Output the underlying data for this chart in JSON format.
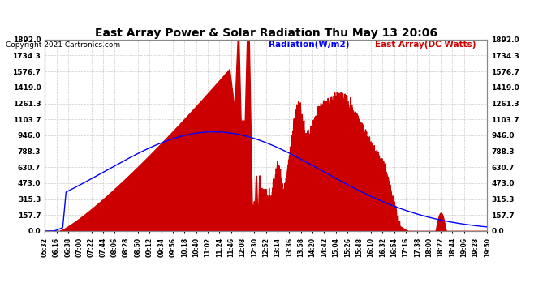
{
  "title": "East Array Power & Solar Radiation Thu May 13 20:06",
  "copyright": "Copyright 2021 Cartronics.com",
  "legend_radiation": "Radiation(W/m2)",
  "legend_east_array": "East Array(DC Watts)",
  "y_ticks": [
    0.0,
    157.7,
    315.3,
    473.0,
    630.7,
    788.3,
    946.0,
    1103.7,
    1261.3,
    1419.0,
    1576.7,
    1734.3,
    1892.0
  ],
  "y_max": 1892.0,
  "x_labels": [
    "05:32",
    "06:16",
    "06:38",
    "07:00",
    "07:22",
    "07:44",
    "08:06",
    "08:28",
    "08:50",
    "09:12",
    "09:34",
    "09:56",
    "10:18",
    "10:40",
    "11:02",
    "11:24",
    "11:46",
    "12:08",
    "12:30",
    "12:52",
    "13:14",
    "13:36",
    "13:58",
    "14:20",
    "14:42",
    "15:04",
    "15:26",
    "15:48",
    "16:10",
    "16:32",
    "16:54",
    "17:16",
    "17:38",
    "18:00",
    "18:22",
    "18:44",
    "19:06",
    "19:28",
    "19:50"
  ],
  "background_color": "#ffffff",
  "plot_bg_color": "#ffffff",
  "grid_color": "#cccccc",
  "fill_color": "#cc0000",
  "line_color_radiation": "#0000ff",
  "title_color": "#000000",
  "copyright_color": "#000000",
  "legend_radiation_color": "#0000ff",
  "legend_east_color": "#cc0000"
}
